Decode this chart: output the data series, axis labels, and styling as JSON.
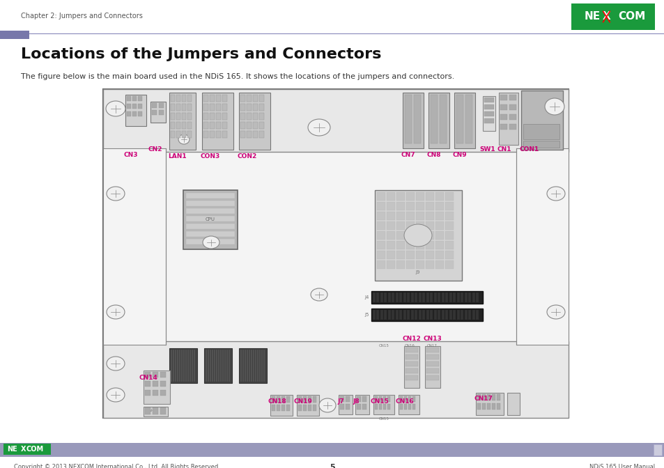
{
  "page_title": "Chapter 2: Jumpers and Connectors",
  "section_title": "Locations of the Jumpers and Connectors",
  "section_subtitle": "The figure below is the main board used in the NDiS 165. It shows the locations of the jumpers and connectors.",
  "footer_left": "Copyright © 2013 NEXCOM International Co., Ltd. All Rights Reserved.",
  "footer_center": "5",
  "footer_right": "NDiS 165 User Manual",
  "nexcom_logo_color": "#1a9a3c",
  "header_line_color": "#8888bb",
  "header_rect_color": "#7777aa",
  "label_color": "#cc0077",
  "bg_color": "#ffffff",
  "footer_bg": "#9999bb"
}
